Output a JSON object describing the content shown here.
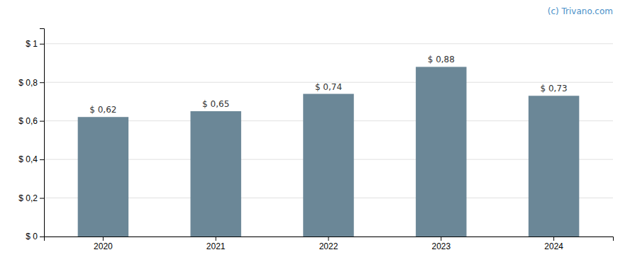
{
  "chart_data": {
    "type": "bar",
    "categories": [
      "2020",
      "2021",
      "2022",
      "2023",
      "2024"
    ],
    "values": [
      0.62,
      0.65,
      0.74,
      0.88,
      0.73
    ],
    "value_labels": [
      "$ 0,62",
      "$ 0,65",
      "$ 0,74",
      "$ 0,88",
      "$ 0,73"
    ],
    "data_labels": true,
    "color": "#6b8797",
    "ylim": [
      0,
      1.08
    ],
    "yticks": [
      {
        "value": 0.0,
        "label": "$ 0"
      },
      {
        "value": 0.2,
        "label": "$ 0,2"
      },
      {
        "value": 0.4,
        "label": "$ 0,4"
      },
      {
        "value": 0.6,
        "label": "$ 0,6"
      },
      {
        "value": 0.8,
        "label": "$ 0,8"
      },
      {
        "value": 1.0,
        "label": "$ 1"
      }
    ],
    "grid": true,
    "annotations": [
      "(c) Trivano.com"
    ]
  }
}
